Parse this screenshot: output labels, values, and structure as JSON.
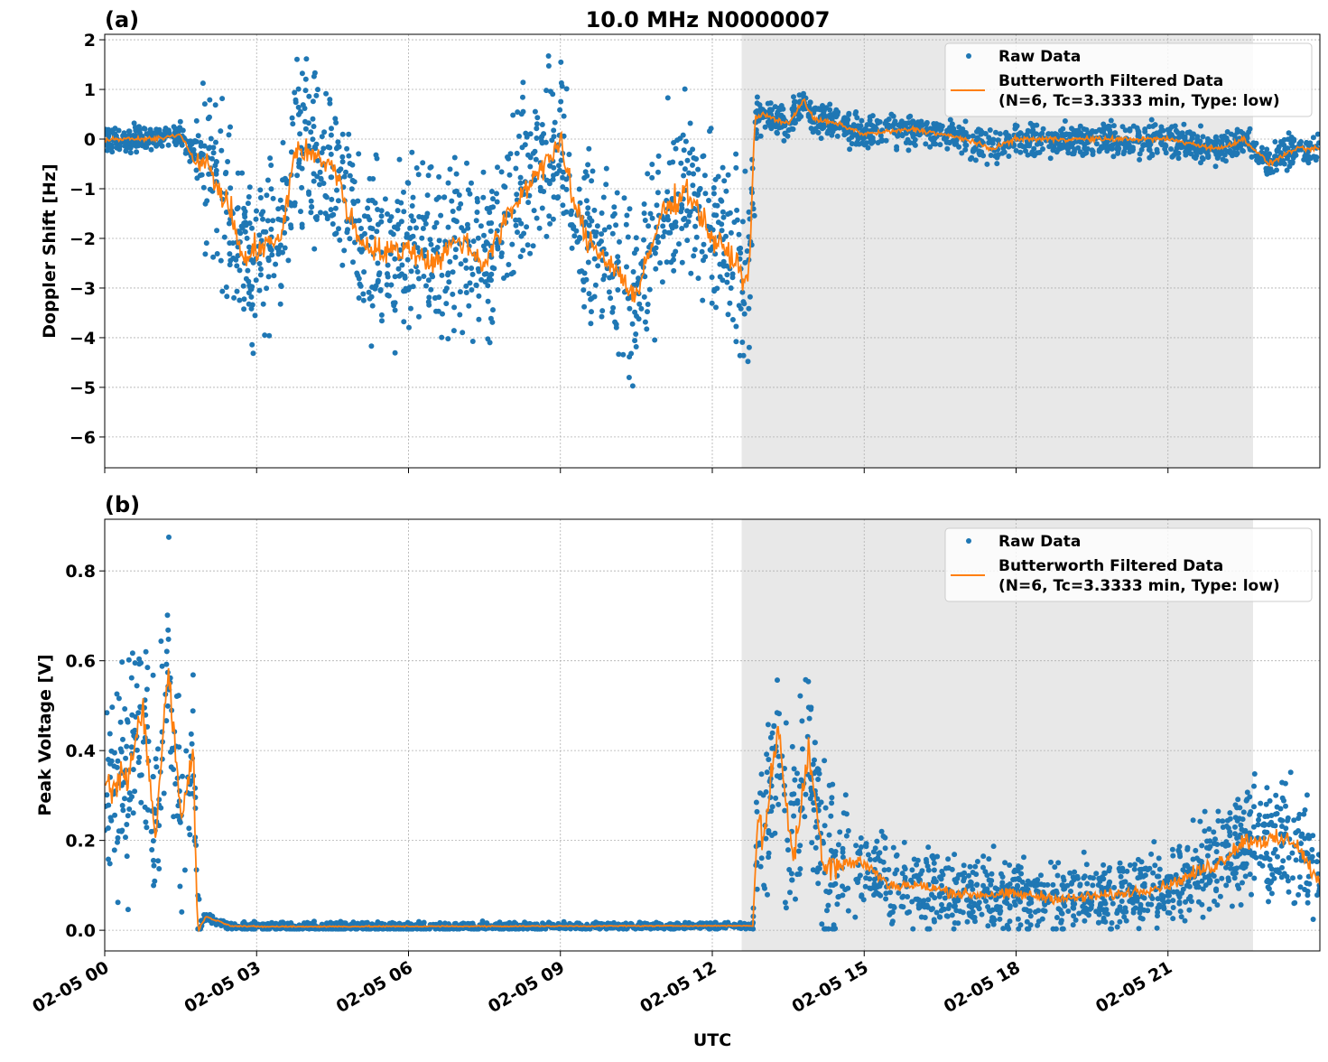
{
  "title": "10.0 MHz N0000007",
  "colors": {
    "raw": "#1f77b4",
    "filtered": "#ff7f0e",
    "shade": "#e8e8e8"
  },
  "chart_data": [
    {
      "type": "scatter+line",
      "panel_label": "(a)",
      "ylabel": "Doppler Shift [Hz]",
      "xlabel": "",
      "xlim_hours": [
        0,
        24
      ],
      "ylim": [
        -6.62,
        2.11
      ],
      "yticks": [
        2,
        1,
        0,
        -1,
        -2,
        -3,
        -4,
        -5,
        -6
      ],
      "ytick_labels": [
        "2",
        "1",
        "0",
        "−1",
        "−2",
        "−3",
        "−4",
        "−5",
        "−6"
      ],
      "grid": true,
      "legend": {
        "position": "top-right",
        "entries": [
          "Raw Data",
          "Butterworth Filtered Data",
          "(N=6, Tc=3.3333 min, Type: low)"
        ]
      },
      "shaded_interval_hours": [
        12.58,
        22.68
      ],
      "filtered_series": {
        "name": "Butterworth Filtered Data",
        "hours": [
          0,
          0.5,
          1,
          1.5,
          1.75,
          2,
          2.5,
          2.75,
          3,
          3.5,
          3.75,
          4,
          4.5,
          5,
          5.5,
          6,
          6.5,
          7,
          7.5,
          8,
          8.5,
          9,
          9.25,
          9.5,
          10,
          10.5,
          11,
          11.5,
          12,
          12.5,
          12.7,
          12.85,
          13,
          13.5,
          13.8,
          14,
          14.5,
          15,
          16,
          17,
          17.5,
          18,
          19,
          20,
          21,
          22,
          22.5,
          23,
          23.5,
          24
        ],
        "values": [
          0,
          0,
          0,
          0.1,
          -0.4,
          -0.5,
          -1.5,
          -2.5,
          -2.2,
          -2.0,
          -0.2,
          -0.3,
          -0.5,
          -2.0,
          -2.3,
          -2.2,
          -2.5,
          -2.0,
          -2.5,
          -1.5,
          -0.7,
          -0.1,
          -1.2,
          -2.0,
          -2.5,
          -3.2,
          -1.5,
          -1.0,
          -2.0,
          -2.5,
          -3.0,
          0.4,
          0.5,
          0.3,
          0.8,
          0.4,
          0.3,
          0.1,
          0.2,
          0.0,
          -0.2,
          0.0,
          0.0,
          0.0,
          0.0,
          -0.2,
          0.0,
          -0.5,
          -0.2,
          -0.2
        ]
      },
      "raw_spread": {
        "name": "Raw Data",
        "hours": [
          0,
          1.7,
          2.0,
          12.8,
          12.9,
          24
        ],
        "half_width": [
          0.25,
          0.25,
          1.6,
          1.6,
          0.3,
          0.3
        ]
      }
    },
    {
      "type": "scatter+line",
      "panel_label": "(b)",
      "ylabel": "Peak Voltage [V]",
      "xlabel": "UTC",
      "xlim_hours": [
        0,
        24
      ],
      "ylim": [
        -0.046,
        0.915
      ],
      "yticks": [
        0.0,
        0.2,
        0.4,
        0.6,
        0.8
      ],
      "ytick_labels": [
        "0.0",
        "0.2",
        "0.4",
        "0.6",
        "0.8"
      ],
      "xticks_hours": [
        0,
        3,
        6,
        9,
        12,
        15,
        18,
        21
      ],
      "xtick_labels": [
        "02-05 00",
        "02-05 03",
        "02-05 06",
        "02-05 09",
        "02-05 12",
        "02-05 15",
        "02-05 18",
        "02-05 21"
      ],
      "grid": true,
      "legend": {
        "position": "top-right",
        "entries": [
          "Raw Data",
          "Butterworth Filtered Data",
          "(N=6, Tc=3.3333 min, Type: low)"
        ]
      },
      "shaded_interval_hours": [
        12.58,
        22.68
      ],
      "filtered_series": {
        "name": "Butterworth Filtered Data",
        "hours": [
          0,
          0.5,
          0.75,
          1,
          1.25,
          1.5,
          1.75,
          1.83,
          2,
          2.5,
          3,
          12.8,
          12.9,
          13,
          13.3,
          13.6,
          13.9,
          14.2,
          15,
          15.5,
          16,
          17,
          18,
          19,
          20,
          21,
          22,
          22.5,
          23,
          23.5,
          24
        ],
        "values": [
          0.3,
          0.35,
          0.5,
          0.2,
          0.6,
          0.25,
          0.4,
          0.0,
          0.03,
          0.01,
          0.008,
          0.01,
          0.25,
          0.2,
          0.45,
          0.15,
          0.4,
          0.15,
          0.15,
          0.1,
          0.1,
          0.08,
          0.08,
          0.07,
          0.08,
          0.1,
          0.15,
          0.2,
          0.2,
          0.2,
          0.1
        ]
      },
      "raw_spread": {
        "name": "Raw Data",
        "hours": [
          0,
          1.8,
          1.9,
          12.8,
          12.9,
          14.5,
          15,
          21,
          22,
          24
        ],
        "half_width": [
          0.22,
          0.22,
          0.01,
          0.006,
          0.2,
          0.2,
          0.08,
          0.07,
          0.12,
          0.12
        ]
      }
    }
  ]
}
